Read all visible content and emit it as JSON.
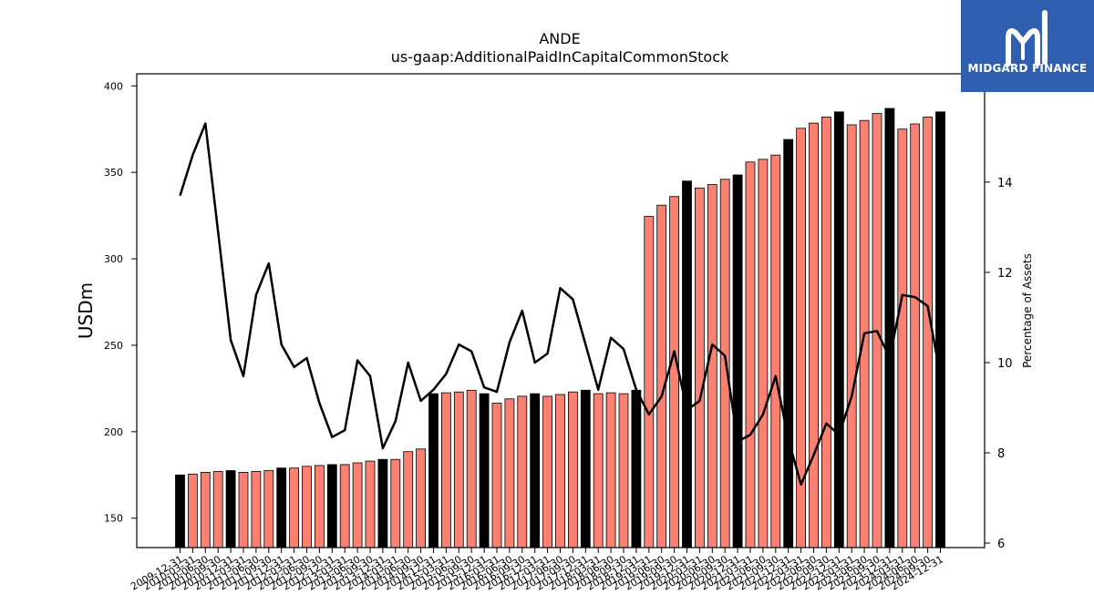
{
  "brand": {
    "name": "MIDGARD FINANCE",
    "bg_color": "#2f5fae",
    "icon": "midgard-logo-icon"
  },
  "chart_data": {
    "type": "bar+line",
    "title": "ANDE",
    "subtitle": "us-gaap:AdditionalPaidInCapitalCommonStock",
    "ylabel": "USDm",
    "y2label": "Percentage of Assets",
    "ylim": [
      133,
      407
    ],
    "y2lim": [
      5.9,
      16.4
    ],
    "yticks": [
      150,
      200,
      250,
      300,
      350,
      400
    ],
    "y2ticks": [
      6,
      8,
      10,
      12,
      14
    ],
    "colors": {
      "annual": "#000000",
      "quarterly": "#fa8072",
      "line": "#000000"
    },
    "categories": [
      "2009-12-31",
      "2010-03-31",
      "2010-06-30",
      "2010-09-30",
      "2010-12-31",
      "2011-03-31",
      "2011-06-30",
      "2011-09-30",
      "2011-12-31",
      "2012-03-31",
      "2012-06-30",
      "2012-09-30",
      "2012-12-31",
      "2013-03-31",
      "2013-06-30",
      "2013-09-30",
      "2013-12-31",
      "2014-03-31",
      "2014-06-30",
      "2014-09-30",
      "2014-12-31",
      "2015-03-31",
      "2015-06-30",
      "2015-09-30",
      "2015-12-31",
      "2016-03-31",
      "2016-06-30",
      "2016-09-30",
      "2016-12-31",
      "2017-03-31",
      "2017-06-30",
      "2017-09-30",
      "2017-12-31",
      "2018-03-31",
      "2018-06-30",
      "2018-09-30",
      "2018-12-31",
      "2019-03-31",
      "2019-06-30",
      "2019-09-30",
      "2019-12-31",
      "2020-03-31",
      "2020-06-30",
      "2020-09-30",
      "2020-12-31",
      "2021-03-31",
      "2021-06-30",
      "2021-09-30",
      "2021-12-31",
      "2022-03-31",
      "2022-06-30",
      "2022-09-30",
      "2022-12-31",
      "2023-03-31",
      "2023-06-30",
      "2023-09-30",
      "2023-12-31",
      "2024-03-31",
      "2024-06-30",
      "2024-09-30",
      "2024-12-31"
    ],
    "tick_labels": [
      "2009-12-31",
      "2010-03-31",
      "2010-06-30",
      "2010-09-30",
      "2010-12-31",
      "2011-03-31",
      "2011-06-30",
      "2011-09-30",
      "2011-12-31",
      "2012-03-31",
      "2012-06-30",
      "2012-09-30",
      "2012-12-31",
      "2013-03-31",
      "2013-06-30",
      "2013-09-30",
      "2013-12-31",
      "2014-03-31",
      "2014-06-30",
      "2014-09-30",
      "2014-12-31",
      "2015-03-31",
      "2015-06-30",
      "2015-09-30",
      "2015-12-31",
      "2016-03-31",
      "2016-06-30",
      "2016-09-30",
      "2016-12-31",
      "2017-03-31",
      "2017-06-30",
      "2017-09-30",
      "2017-12-31",
      "2018-03-31",
      "2018-06-30",
      "2018-09-30",
      "2018-12-31",
      "2019-03-31",
      "2019-06-30",
      "2019-09-30",
      "2019-12-31",
      "2020-03-31",
      "2020-06-30",
      "2020-09-30",
      "2020-12-31",
      "2021-03-31",
      "2021-06-30",
      "2021-09-30",
      "2021-12-31",
      "2022-03-31",
      "2022-06-30",
      "2022-09-30",
      "2022-12-31",
      "2023-03-31",
      "2023-06-30",
      "2023-09-30",
      "2023-12-31",
      "2024-03-31",
      "2024-06-30",
      "2024-09-30",
      "2024-12-31"
    ],
    "annual": [
      true,
      false,
      false,
      false,
      true,
      false,
      false,
      false,
      true,
      false,
      false,
      false,
      true,
      false,
      false,
      false,
      true,
      false,
      false,
      false,
      true,
      false,
      false,
      false,
      true,
      false,
      false,
      false,
      true,
      false,
      false,
      false,
      true,
      false,
      false,
      false,
      true,
      false,
      false,
      false,
      true,
      false,
      false,
      false,
      true,
      false,
      false,
      false,
      true,
      false,
      false,
      false,
      true,
      false,
      false,
      false,
      true,
      false,
      false,
      false,
      true
    ],
    "values": [
      175,
      175.5,
      176.5,
      177,
      177.5,
      176.5,
      177,
      177.5,
      179,
      179,
      180,
      180.5,
      181,
      181,
      182,
      183,
      184,
      184,
      188.5,
      190,
      222,
      222.5,
      223,
      224,
      222,
      216.5,
      219,
      220.5,
      222,
      220.5,
      221.5,
      223,
      224,
      222,
      222.5,
      222,
      224,
      324.5,
      331,
      336,
      345,
      341,
      343,
      346,
      348.5,
      356,
      357.5,
      360,
      369,
      375.5,
      378.5,
      382,
      385,
      377.5,
      380,
      384,
      387,
      375,
      378,
      382,
      385
    ],
    "pct_assets": [
      13.7,
      14.6,
      15.3,
      12.9,
      10.5,
      9.7,
      11.5,
      12.2,
      10.4,
      9.9,
      10.1,
      9.1,
      8.35,
      8.5,
      10.05,
      9.7,
      8.1,
      8.7,
      10.0,
      9.15,
      9.4,
      9.75,
      10.4,
      10.25,
      9.45,
      9.35,
      10.45,
      11.15,
      10.0,
      10.2,
      11.65,
      11.4,
      10.4,
      9.4,
      10.55,
      10.3,
      9.4,
      8.85,
      9.25,
      10.25,
      8.95,
      9.15,
      10.4,
      10.15,
      8.25,
      8.4,
      8.85,
      9.7,
      8.3,
      7.3,
      7.95,
      8.65,
      8.4,
      9.25,
      10.65,
      10.7,
      10.1,
      11.5,
      11.45,
      11.25,
      9.7
    ]
  }
}
